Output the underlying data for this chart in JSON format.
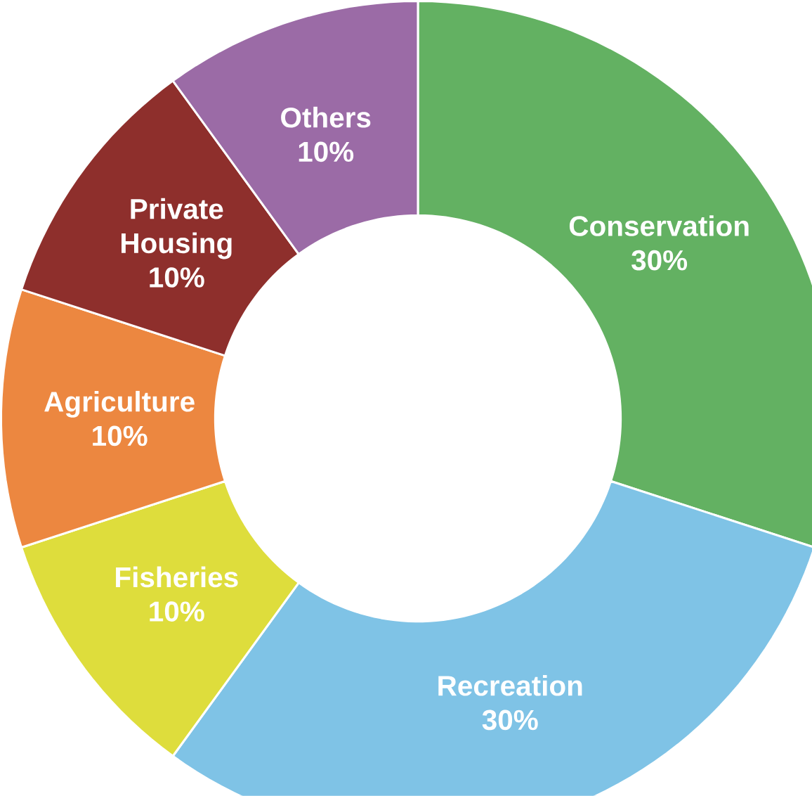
{
  "chart_data": {
    "type": "donut",
    "categories": [
      "Conservation",
      "Recreation",
      "Fisheries",
      "Agriculture",
      "Private Housing",
      "Others"
    ],
    "values": [
      30,
      30,
      10,
      10,
      10,
      10
    ],
    "value_labels": [
      "30%",
      "30%",
      "10%",
      "10%",
      "10%",
      "10%"
    ],
    "colors": [
      "#63b162",
      "#7fc3e6",
      "#dedd3c",
      "#ec8740",
      "#8e2f2c",
      "#9b6ba6"
    ]
  }
}
